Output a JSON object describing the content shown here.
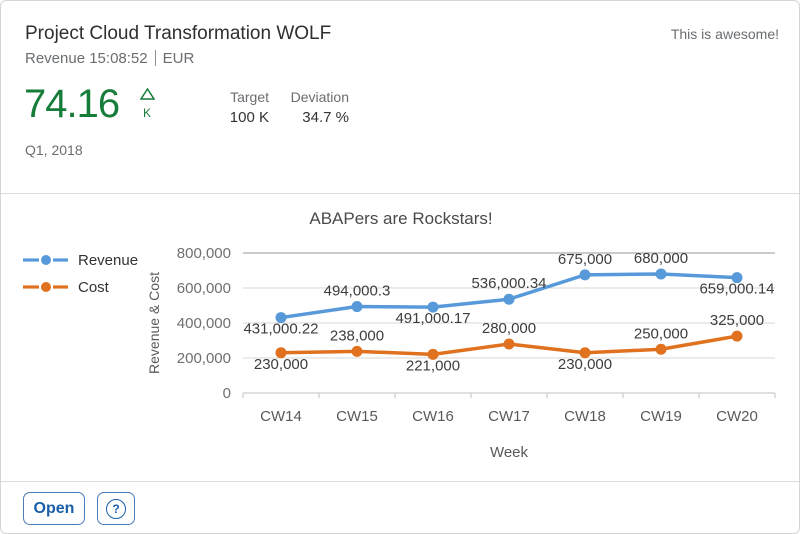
{
  "card": {
    "header": {
      "title": "Project Cloud Transformation WOLF",
      "subtitle": "Revenue 15:08:52",
      "unit": "EUR",
      "info": "This is awesome!",
      "kpi_value": "74.16",
      "kpi_scale": "K",
      "trend_direction": "up",
      "target_label": "Target",
      "target_value": "100 K",
      "deviation_label": "Deviation",
      "deviation_value": "34.7 %",
      "period": "Q1, 2018"
    },
    "footer": {
      "open_label": "Open",
      "help_label": "?"
    },
    "colors": {
      "kpi_green": "#157c39",
      "button_blue": "#1a5fa9",
      "revenue_blue": "#5899DA",
      "cost_orange": "#E0711F"
    }
  },
  "chart_data": {
    "type": "line",
    "title": "ABAPers are Rockstars!",
    "xlabel": "Week",
    "ylabel": "Revenue & Cost",
    "categories": [
      "CW14",
      "CW15",
      "CW16",
      "CW17",
      "CW18",
      "CW19",
      "CW20"
    ],
    "series": [
      {
        "name": "Revenue",
        "color": "#5899DA",
        "values": [
          431000.22,
          494000.3,
          491000.17,
          536000.34,
          675000,
          680000,
          659000.14
        ],
        "labels": [
          "431,000.22",
          "494,000.3",
          "491,000.17",
          "536,000.34",
          "675,000",
          "680,000",
          "659,000.14"
        ],
        "label_pos": [
          "below",
          "above",
          "below",
          "above",
          "above",
          "above",
          "below"
        ]
      },
      {
        "name": "Cost",
        "color": "#E0711F",
        "values": [
          230000,
          238000,
          221000,
          280000,
          230000,
          250000,
          325000
        ],
        "labels": [
          "230,000",
          "238,000",
          "221,000",
          "280,000",
          "230,000",
          "250,000",
          "325,000"
        ],
        "label_pos": [
          "below",
          "above",
          "below",
          "above",
          "below",
          "above",
          "above"
        ]
      }
    ],
    "ylim": [
      0,
      800000
    ],
    "yticks": [
      0,
      200000,
      400000,
      600000,
      800000
    ],
    "ytick_labels": [
      "0",
      "200,000",
      "400,000",
      "600,000",
      "800,000"
    ],
    "grid": true,
    "legend_position": "left"
  }
}
